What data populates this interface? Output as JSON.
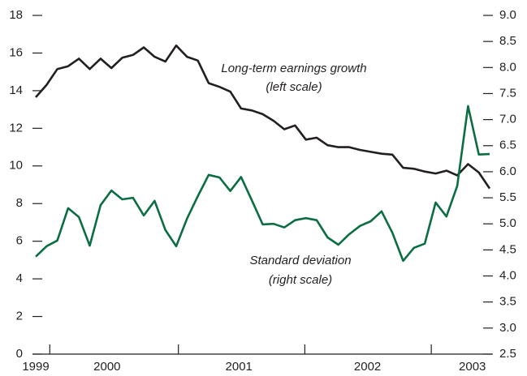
{
  "chart_data": {
    "type": "line",
    "annotations": [
      "Long-term earnings growth",
      "(left scale)",
      "Standard deviation",
      "(right scale)"
    ],
    "x": [
      0,
      1,
      2,
      3,
      4,
      5,
      6,
      7,
      8,
      9,
      10,
      11,
      12,
      13,
      14,
      15,
      16,
      17,
      18,
      19,
      20,
      21,
      22,
      23,
      24,
      25,
      26,
      27,
      28,
      29,
      30,
      31,
      32,
      33,
      34,
      35,
      36,
      37,
      38,
      39,
      40,
      41,
      42
    ],
    "xlim": [
      0,
      42
    ],
    "xtick_marks": [
      1.3,
      13.2,
      24.9,
      36.6
    ],
    "year_labels": [
      {
        "value": 0,
        "label": "1999"
      },
      {
        "value": 6.6,
        "label": "2000"
      },
      {
        "value": 18.8,
        "label": "2001"
      },
      {
        "value": 30.7,
        "label": "2002"
      },
      {
        "value": 40.4,
        "label": "2003"
      }
    ],
    "ylim": [
      0,
      18
    ],
    "yticks": [
      0,
      2,
      4,
      6,
      8,
      10,
      12,
      14,
      16,
      18
    ],
    "y2lim": [
      2.5,
      9.0
    ],
    "y2ticks": [
      2.5,
      {
        "value": 3.0,
        "label": "3.0"
      },
      3.5,
      {
        "value": 4.0,
        "label": "4.0"
      },
      4.5,
      {
        "value": 5.0,
        "label": "5.0"
      },
      5.5,
      {
        "value": 6.0,
        "label": "6.0"
      },
      6.5,
      {
        "value": 7.0,
        "label": "7.0"
      },
      7.5,
      {
        "value": 8.0,
        "label": "8.0"
      },
      8.5,
      {
        "value": 9.0,
        "label": "9.0"
      }
    ],
    "series": [
      {
        "color": "#231f20",
        "axis": "y",
        "values": [
          13.65,
          14.3,
          15.15,
          15.3,
          15.7,
          15.15,
          15.7,
          15.2,
          15.75,
          15.9,
          16.3,
          15.8,
          15.55,
          16.4,
          15.8,
          15.6,
          14.4,
          14.2,
          13.95,
          13.05,
          12.95,
          12.75,
          12.4,
          11.95,
          12.15,
          11.4,
          11.5,
          11.1,
          11.0,
          11.0,
          10.85,
          10.75,
          10.65,
          10.6,
          9.9,
          9.85,
          9.7,
          9.6,
          9.75,
          9.5,
          10.1,
          9.65,
          8.8
        ]
      },
      {
        "color": "#0b6e43",
        "axis": "y2",
        "values": [
          4.37,
          4.57,
          4.68,
          5.3,
          5.13,
          4.58,
          5.36,
          5.64,
          5.47,
          5.5,
          5.16,
          5.44,
          4.88,
          4.57,
          5.1,
          5.53,
          5.94,
          5.89,
          5.63,
          5.9,
          5.45,
          4.99,
          5.0,
          4.93,
          5.07,
          5.11,
          5.07,
          4.74,
          4.6,
          4.8,
          4.96,
          5.05,
          5.24,
          4.83,
          4.29,
          4.54,
          4.62,
          5.41,
          5.14,
          5.73,
          7.26,
          6.33,
          6.34
        ]
      }
    ]
  }
}
